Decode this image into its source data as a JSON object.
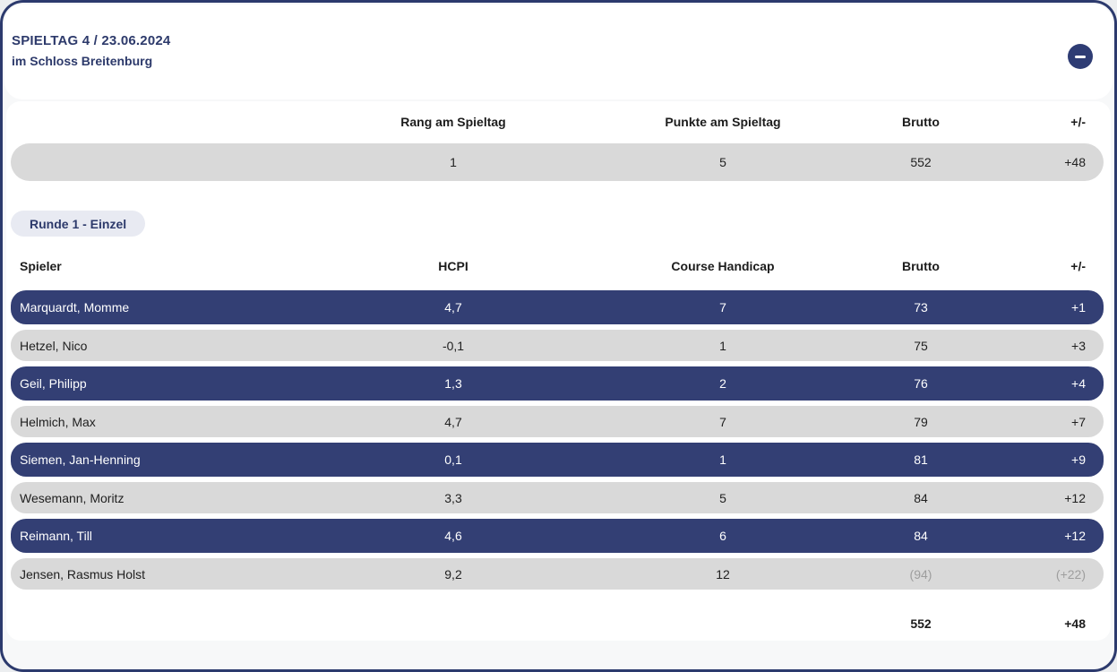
{
  "header": {
    "title": "SPIELTAG 4 / 23.06.2024",
    "subtitle": "im Schloss Breitenburg",
    "collapse_icon": "minus-icon"
  },
  "summary": {
    "columns": [
      "Rang am Spieltag",
      "Punkte am Spieltag",
      "Brutto",
      "+/-"
    ],
    "values": [
      "1",
      "5",
      "552",
      "+48"
    ]
  },
  "round_badge": {
    "label": "Runde 1 - Einzel"
  },
  "players_table": {
    "columns": [
      "Spieler",
      "HCPI",
      "Course Handicap",
      "Brutto",
      "+/-"
    ],
    "rows": [
      {
        "name": "Marquardt, Momme",
        "hcpi": "4,7",
        "course_handicap": "7",
        "brutto": "73",
        "diff": "+1",
        "highlight": true,
        "muted": false
      },
      {
        "name": "Hetzel, Nico",
        "hcpi": "-0,1",
        "course_handicap": "1",
        "brutto": "75",
        "diff": "+3",
        "highlight": false,
        "muted": false
      },
      {
        "name": "Geil, Philipp",
        "hcpi": "1,3",
        "course_handicap": "2",
        "brutto": "76",
        "diff": "+4",
        "highlight": true,
        "muted": false
      },
      {
        "name": "Helmich, Max",
        "hcpi": "4,7",
        "course_handicap": "7",
        "brutto": "79",
        "diff": "+7",
        "highlight": false,
        "muted": false
      },
      {
        "name": "Siemen, Jan-Henning",
        "hcpi": "0,1",
        "course_handicap": "1",
        "brutto": "81",
        "diff": "+9",
        "highlight": true,
        "muted": false
      },
      {
        "name": "Wesemann, Moritz",
        "hcpi": "3,3",
        "course_handicap": "5",
        "brutto": "84",
        "diff": "+12",
        "highlight": false,
        "muted": false
      },
      {
        "name": "Reimann, Till",
        "hcpi": "4,6",
        "course_handicap": "6",
        "brutto": "84",
        "diff": "+12",
        "highlight": true,
        "muted": false
      },
      {
        "name": "Jensen, Rasmus Holst",
        "hcpi": "9,2",
        "course_handicap": "12",
        "brutto": "(94)",
        "diff": "(+22)",
        "highlight": false,
        "muted": true
      }
    ],
    "totals": {
      "brutto": "552",
      "diff": "+48"
    }
  },
  "colors": {
    "accent_navy": "#2c3a6d",
    "row_highlight": "#333f74",
    "row_default": "#d9d9d9",
    "badge_bg": "#e8eaf2",
    "muted_text": "#9e9e9e"
  }
}
